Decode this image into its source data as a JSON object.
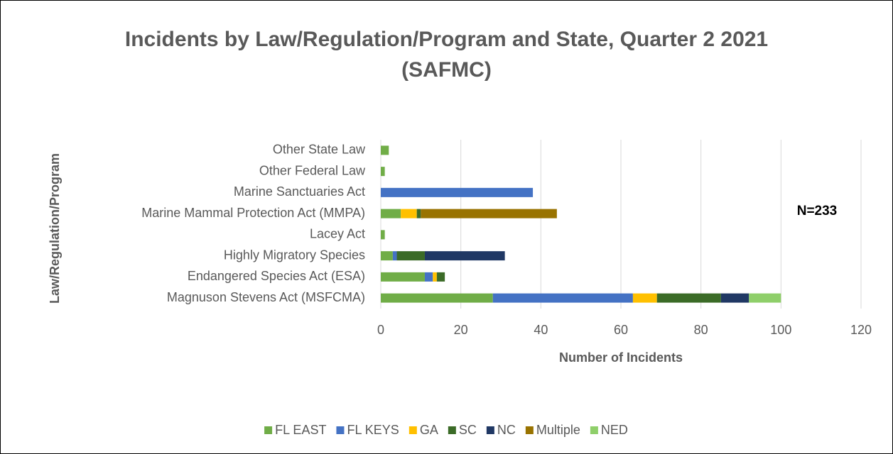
{
  "chart_data": {
    "type": "stacked_barh",
    "title": "Incidents by Law/Regulation/Program and State, Quarter 2 2021 (SAFMC)",
    "x_label": "Number of Incidents",
    "y_label": "Law/Regulation/Program",
    "annotation": "N=233",
    "categories": [
      "Other State Law",
      "Other Federal Law",
      "Marine Sanctuaries Act",
      "Marine Mammal Protection Act (MMPA)",
      "Lacey Act",
      "Highly Migratory Species",
      "Endangered Species Act (ESA)",
      "Magnuson Stevens Act (MSFCMA)"
    ],
    "series": [
      {
        "name": "FL EAST",
        "color": "#70ad47",
        "values": [
          2,
          1,
          0,
          5,
          1,
          3,
          11,
          28
        ]
      },
      {
        "name": "FL KEYS",
        "color": "#4472c4",
        "values": [
          0,
          0,
          38,
          0,
          0,
          1,
          2,
          35
        ]
      },
      {
        "name": "GA",
        "color": "#ffc000",
        "values": [
          0,
          0,
          0,
          4,
          0,
          0,
          1,
          6
        ]
      },
      {
        "name": "SC",
        "color": "#3b6b27",
        "values": [
          0,
          0,
          0,
          1,
          0,
          7,
          2,
          16
        ]
      },
      {
        "name": "NC",
        "color": "#203864",
        "values": [
          0,
          0,
          0,
          0,
          0,
          20,
          0,
          7
        ]
      },
      {
        "name": "Multiple",
        "color": "#997300",
        "values": [
          0,
          0,
          0,
          34,
          0,
          0,
          0,
          0
        ]
      },
      {
        "name": "NED",
        "color": "#8fcf6a",
        "values": [
          0,
          0,
          0,
          0,
          0,
          0,
          0,
          8
        ]
      }
    ],
    "xlim": [
      0,
      120
    ],
    "xticks": [
      0,
      20,
      40,
      60,
      80,
      100,
      120
    ],
    "grid": true,
    "legend": "bottom"
  }
}
